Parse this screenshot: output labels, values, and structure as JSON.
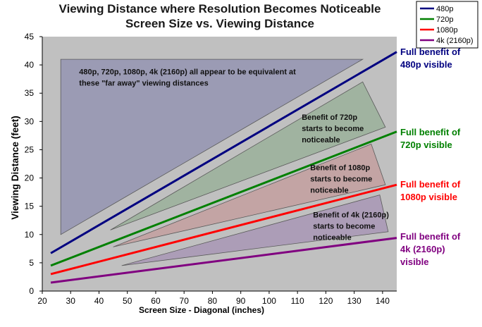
{
  "chart_data": {
    "type": "line",
    "title": "Viewing Distance where Resolution Becomes Noticeable",
    "subtitle": "Screen Size vs. Viewing Distance",
    "xlabel": "Screen Size - Diagonal (inches)",
    "ylabel": "Viewing Distance (feet)",
    "xlim": [
      20,
      145
    ],
    "ylim": [
      0,
      45
    ],
    "xticks": [
      "20",
      "30",
      "40",
      "50",
      "60",
      "70",
      "80",
      "90",
      "100",
      "110",
      "120",
      "130",
      "140"
    ],
    "yticks": [
      "0",
      "5",
      "10",
      "15",
      "20",
      "25",
      "30",
      "35",
      "40",
      "45"
    ],
    "grid": false,
    "legend_position": "top-right",
    "series": [
      {
        "name": "480p",
        "color": "#000080",
        "x": [
          23,
          145
        ],
        "y": [
          6.7,
          42.3
        ]
      },
      {
        "name": "720p",
        "color": "#008000",
        "x": [
          23,
          145
        ],
        "y": [
          4.5,
          28.2
        ]
      },
      {
        "name": "1080p",
        "color": "#ff0000",
        "x": [
          23,
          145
        ],
        "y": [
          3.0,
          18.8
        ]
      },
      {
        "name": "4k (2160p)",
        "color": "#800080",
        "x": [
          23,
          145
        ],
        "y": [
          1.5,
          9.4
        ]
      }
    ],
    "regions": [
      {
        "name": "480p-equivalent",
        "color": "#9a9ab4",
        "points": [
          [
            26.5,
            41
          ],
          [
            26.5,
            10
          ],
          [
            133,
            41
          ]
        ]
      },
      {
        "name": "720p-benefit",
        "color": "#9fb39f",
        "points": [
          [
            44,
            10.8
          ],
          [
            133,
            37
          ],
          [
            141,
            29
          ]
        ]
      },
      {
        "name": "1080p-benefit",
        "color": "#c4a3a3",
        "points": [
          [
            45,
            7.8
          ],
          [
            136,
            26
          ],
          [
            141,
            18.8
          ]
        ]
      },
      {
        "name": "4k-benefit",
        "color": "#ab9cb7",
        "points": [
          [
            48,
            4.5
          ],
          [
            139,
            17
          ],
          [
            142,
            10.5
          ]
        ]
      }
    ],
    "annotations": [
      {
        "lines": [
          "480p, 720p, 1080p, 4k (2160p) all appear to be equivalent at",
          "these \"far away\" viewing distances"
        ]
      },
      {
        "lines": [
          "Benefit of 720p",
          "starts to become",
          "noticeable"
        ]
      },
      {
        "lines": [
          "Benefit of 1080p",
          "starts to become",
          "noticeable"
        ]
      },
      {
        "lines": [
          "Benefit of 4k (2160p)",
          "starts to become",
          "noticeable"
        ]
      }
    ],
    "side_labels": [
      {
        "lines": [
          "Full benefit of",
          "480p visible"
        ],
        "color": "#000080"
      },
      {
        "lines": [
          "Full benefit of",
          "720p visible"
        ],
        "color": "#008000"
      },
      {
        "lines": [
          "Full benefit of",
          "1080p visible"
        ],
        "color": "#ff0000"
      },
      {
        "lines": [
          "Full benefit of",
          "4k (2160p)",
          "visible"
        ],
        "color": "#800080"
      }
    ],
    "plot_background": "#c0c0c0"
  }
}
